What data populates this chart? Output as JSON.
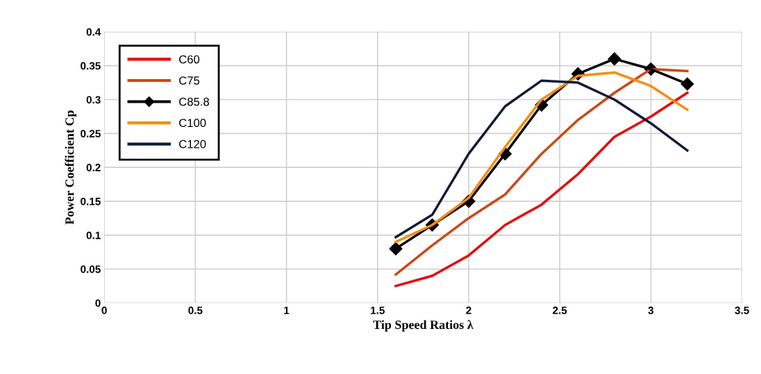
{
  "chart_data": {
    "type": "line",
    "xlabel": "Tip Speed Ratios λ",
    "ylabel": "Power Coefficient Cp",
    "x": [
      1.6,
      1.8,
      2.0,
      2.2,
      2.4,
      2.6,
      2.8,
      3.0,
      3.2
    ],
    "series": [
      {
        "name": "C60",
        "color": "#ff0000",
        "marker": "none",
        "values": [
          0.025,
          0.04,
          0.07,
          0.115,
          0.145,
          0.19,
          0.245,
          0.275,
          0.31
        ]
      },
      {
        "name": "C75",
        "color": "#d9430b",
        "marker": "none",
        "values": [
          0.042,
          0.085,
          0.125,
          0.16,
          0.22,
          0.27,
          0.31,
          0.345,
          0.342
        ]
      },
      {
        "name": "C85.8",
        "color": "#000000",
        "marker": "diamond",
        "values": [
          0.08,
          0.115,
          0.15,
          0.22,
          0.292,
          0.338,
          0.36,
          0.345,
          0.323
        ]
      },
      {
        "name": "C100",
        "color": "#ff8c00",
        "marker": "none",
        "values": [
          0.09,
          0.115,
          0.155,
          0.23,
          0.3,
          0.335,
          0.34,
          0.32,
          0.285
        ]
      },
      {
        "name": "C120",
        "color": "#0d1a3a",
        "marker": "none",
        "values": [
          0.097,
          0.13,
          0.22,
          0.29,
          0.328,
          0.325,
          0.3,
          0.265,
          0.225
        ]
      }
    ],
    "xlim": [
      0,
      3.5
    ],
    "xticks": [
      0,
      0.5,
      1,
      1.5,
      2,
      2.5,
      3,
      3.5
    ],
    "ylim": [
      0,
      0.4
    ],
    "yticks": [
      0,
      0.05,
      0.1,
      0.15,
      0.2,
      0.25,
      0.3,
      0.35,
      0.4
    ],
    "grid": true,
    "legend": "top left",
    "line_style": "solid"
  }
}
